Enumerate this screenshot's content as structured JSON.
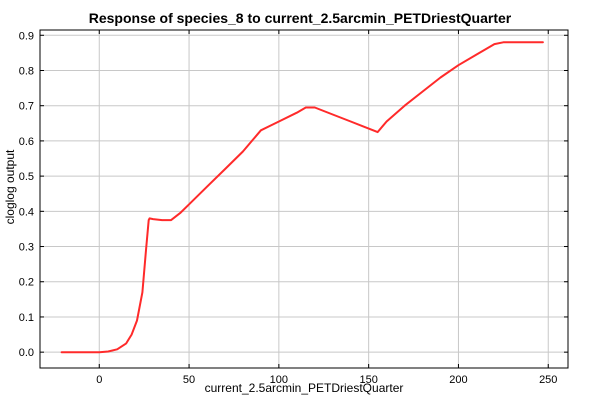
{
  "chart_data": {
    "type": "line",
    "title": "Response of species_8 to current_2.5arcmin_PETDriestQuarter",
    "xlabel": "current_2.5arcmin_PETDriestQuarter",
    "ylabel": "cloglog output",
    "xlim": [
      -33,
      261
    ],
    "ylim": [
      -0.045,
      0.915
    ],
    "xticks": [
      0,
      50,
      100,
      150,
      200,
      250
    ],
    "yticks": [
      0.0,
      0.1,
      0.2,
      0.3,
      0.4,
      0.5,
      0.6,
      0.7,
      0.8,
      0.9
    ],
    "ytick_labels": [
      "0.0",
      "0.1",
      "0.2",
      "0.3",
      "0.4",
      "0.5",
      "0.6",
      "0.7",
      "0.8",
      "0.9"
    ],
    "grid": true,
    "series": [
      {
        "color": "#ff2a2a",
        "x": [
          -21,
          0,
          5,
          10,
          15,
          18,
          21,
          24,
          26,
          27.5,
          28,
          30,
          35,
          40,
          45,
          50,
          60,
          70,
          80,
          85,
          90,
          100,
          110,
          115,
          120,
          130,
          140,
          150,
          155,
          160,
          170,
          180,
          190,
          200,
          210,
          220,
          225,
          235,
          247
        ],
        "y": [
          0.0,
          0.0,
          0.002,
          0.008,
          0.025,
          0.05,
          0.09,
          0.17,
          0.29,
          0.375,
          0.38,
          0.378,
          0.375,
          0.375,
          0.395,
          0.42,
          0.47,
          0.52,
          0.57,
          0.6,
          0.63,
          0.655,
          0.68,
          0.695,
          0.695,
          0.675,
          0.655,
          0.635,
          0.625,
          0.655,
          0.7,
          0.74,
          0.78,
          0.815,
          0.845,
          0.875,
          0.88,
          0.88,
          0.88
        ]
      }
    ]
  }
}
